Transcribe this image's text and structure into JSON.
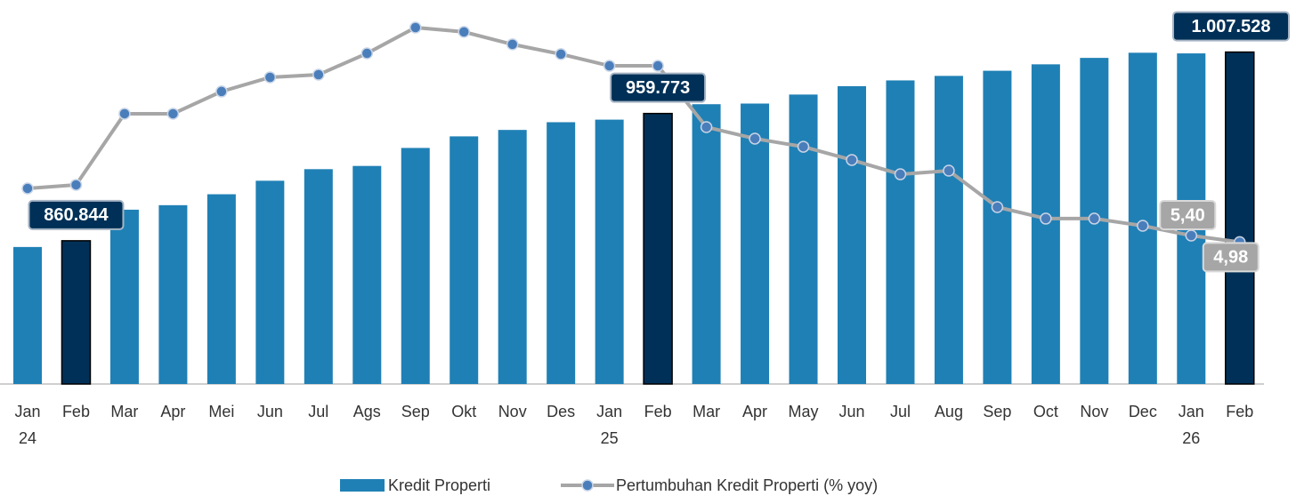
{
  "chart_data": {
    "type": "bar_line",
    "categories": [
      "Jan 24",
      "Feb",
      "Mar",
      "Apr",
      "Mei",
      "Jun",
      "Jul",
      "Ags",
      "Sep",
      "Okt",
      "Nov",
      "Des",
      "Jan 25",
      "Feb",
      "Mar",
      "Apr",
      "May",
      "Jun",
      "Jul",
      "Aug",
      "Sep",
      "Oct",
      "Nov",
      "Dec",
      "Jan 26",
      "Feb"
    ],
    "series": [
      {
        "name": "Kredit Properti",
        "type": "bar",
        "color": "#1f80b5",
        "colors": [
          "#1f80b5",
          "#003057",
          "#1f80b5",
          "#1f80b5",
          "#1f80b5",
          "#1f80b5",
          "#1f80b5",
          "#1f80b5",
          "#1f80b5",
          "#1f80b5",
          "#1f80b5",
          "#1f80b5",
          "#1f80b5",
          "#003057",
          "#1f80b5",
          "#1f80b5",
          "#1f80b5",
          "#1f80b5",
          "#1f80b5",
          "#1f80b5",
          "#1f80b5",
          "#1f80b5",
          "#1f80b5",
          "#1f80b5",
          "#1f80b5",
          "#003057"
        ],
        "values": [
          856000,
          860844,
          885000,
          888500,
          897000,
          907500,
          916500,
          919000,
          933000,
          942000,
          947000,
          953000,
          955000,
          959773,
          967000,
          967500,
          974500,
          981000,
          985500,
          989000,
          993000,
          998000,
          1003000,
          1007000,
          1006500,
          1007528
        ],
        "value_labels": [
          null,
          "860.844",
          null,
          null,
          null,
          null,
          null,
          null,
          null,
          null,
          null,
          null,
          null,
          "959.773",
          null,
          null,
          null,
          null,
          null,
          null,
          null,
          null,
          null,
          null,
          null,
          "1.007.528"
        ]
      },
      {
        "name": "Pertumbuhan Kredit Properti (% yoy)",
        "type": "line",
        "axis": "y2",
        "color": "#a6a6a6",
        "marker_color": "#4a7ebb",
        "values": [
          8.43,
          8.66,
          13.23,
          13.23,
          14.66,
          15.57,
          15.74,
          17.11,
          18.77,
          18.49,
          17.69,
          17.06,
          16.31,
          16.31,
          12.37,
          11.63,
          11.11,
          10.26,
          9.34,
          9.57,
          7.23,
          6.49,
          6.49,
          6.03,
          5.4,
          4.98
        ],
        "value_labels": [
          null,
          null,
          null,
          null,
          null,
          null,
          null,
          null,
          null,
          null,
          null,
          null,
          null,
          null,
          null,
          null,
          null,
          null,
          null,
          null,
          null,
          null,
          null,
          null,
          "5,40",
          "4,98"
        ]
      }
    ],
    "ylim": [
      749500,
      1048000
    ],
    "y2lim": [
      -4.14,
      20.54
    ],
    "legend": "bottom"
  }
}
